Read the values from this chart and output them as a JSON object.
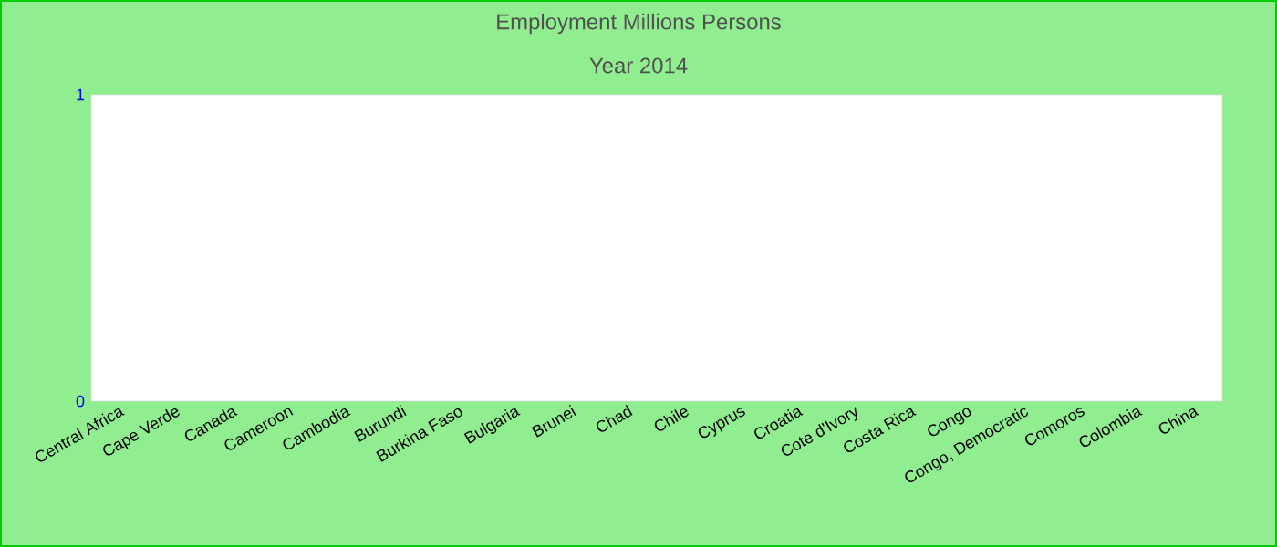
{
  "chart_data": {
    "type": "bar",
    "title": "Employment Millions Persons",
    "subtitle": "Year 2014",
    "categories": [
      "Central Africa",
      "Cape Verde",
      "Canada",
      "Cameroon",
      "Cambodia",
      "Burundi",
      "Burkina Faso",
      "Bulgaria",
      "Brunei",
      "Chad",
      "Chile",
      "Cyprus",
      "Croatia",
      "Cote d'Ivory",
      "Costa Rica",
      "Congo",
      "Congo, Democratic",
      "Comoros",
      "Colombia",
      "China"
    ],
    "values": [
      null,
      null,
      null,
      null,
      null,
      null,
      null,
      null,
      null,
      null,
      null,
      null,
      null,
      null,
      null,
      null,
      null,
      null,
      null,
      null
    ],
    "ylim": [
      0,
      1
    ],
    "yticks": [
      0,
      1
    ]
  }
}
